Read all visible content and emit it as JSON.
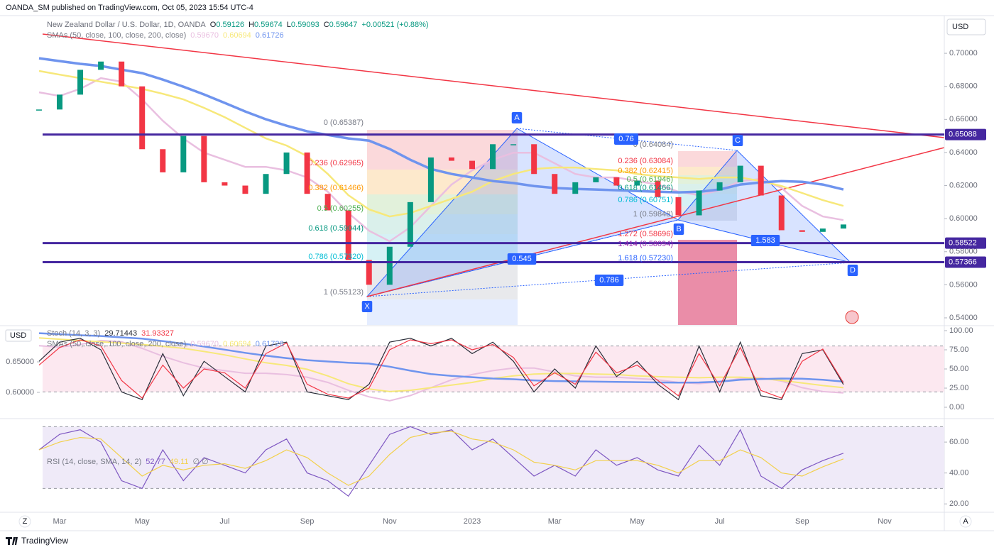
{
  "header": {
    "publisher": "OANDA_SM published on TradingView.com, Oct 05, 2023 15:54 UTC-4",
    "symbol": "New Zealand Dollar / U.S. Dollar, 1D, OANDA",
    "ohlc": [
      {
        "key": "O",
        "value": "0.59126"
      },
      {
        "key": "H",
        "value": "0.59674"
      },
      {
        "key": "L",
        "value": "0.59093"
      },
      {
        "key": "C",
        "value": "0.59647"
      }
    ],
    "change": "+0.00521 (+0.88%)",
    "currency": "USD",
    "brand": "TradingView",
    "scale_buttons": [
      "Z",
      "A"
    ]
  },
  "chart_data": [
    {
      "type": "candlestick",
      "indicator": "SMAs (50, close, 100, close, 200, close)",
      "indicator_values": [
        "0.59670",
        "0.60694",
        "0.61726"
      ],
      "categories": [
        null,
        "Mar",
        null,
        null,
        null,
        "May",
        null,
        null,
        null,
        "Jul",
        null,
        null,
        null,
        "Sep",
        null,
        null,
        null,
        "Nov",
        null,
        null,
        null,
        "2023",
        null,
        null,
        null,
        "Mar",
        null,
        null,
        null,
        "May",
        null,
        null,
        null,
        "Jul",
        null,
        null,
        null,
        "Sep",
        null,
        null,
        null,
        "Nov",
        null
      ],
      "values": [
        0.666,
        0.675,
        0.69,
        0.695,
        0.68,
        0.642,
        0.628,
        0.65,
        0.622,
        0.62,
        0.615,
        0.627,
        0.64,
        0.615,
        0.605,
        0.575,
        0.56,
        0.583,
        0.61,
        0.637,
        0.635,
        0.63,
        0.645,
        0.645,
        0.627,
        0.615,
        0.622,
        0.625,
        0.62,
        0.623,
        0.613,
        0.602,
        0.617,
        0.622,
        0.632,
        0.614,
        0.593,
        0.592,
        0.594,
        0.59647,
        null,
        null,
        null
      ],
      "up_color": "#089981",
      "down_color": "#f23645",
      "series": [
        {
          "color": "#e9bfe0",
          "values": [
            0.6764,
            0.6742,
            0.6785,
            0.685,
            0.6828,
            0.6721,
            0.6592,
            0.6485,
            0.6399,
            0.6356,
            0.6313,
            0.6313,
            0.6292,
            0.6249,
            0.6163,
            0.6034,
            0.5927,
            0.5863,
            0.5948,
            0.6077,
            0.6206,
            0.6292,
            0.6356,
            0.6399,
            0.6399,
            0.6335,
            0.627,
            0.6249,
            0.6249,
            0.6227,
            0.6206,
            0.6163,
            0.6142,
            0.6172,
            0.6227,
            0.624,
            0.6185,
            0.6077,
            0.6013,
            0.5991,
            null,
            null,
            null
          ]
        },
        {
          "color": "#f7e87a",
          "values": [
            0.6893,
            0.6871,
            0.685,
            0.6828,
            0.6807,
            0.6785,
            0.6755,
            0.6721,
            0.667,
            0.6614,
            0.6549,
            0.6485,
            0.6442,
            0.6378,
            0.627,
            0.6142,
            0.6056,
            0.6013,
            0.6034,
            0.6077,
            0.612,
            0.6163,
            0.6227,
            0.627,
            0.63,
            0.6309,
            0.6309,
            0.63,
            0.6292,
            0.627,
            0.6257,
            0.6249,
            0.624,
            0.6249,
            0.6249,
            0.6227,
            0.6197,
            0.6155,
            0.6112,
            0.6077,
            null,
            null,
            null
          ]
        },
        {
          "color": "#6f94ee",
          "values": [
            0.697,
            0.6953,
            0.6936,
            0.6923,
            0.6901,
            0.688,
            0.6841,
            0.6798,
            0.6751,
            0.67,
            0.6648,
            0.6601,
            0.6562,
            0.6528,
            0.6506,
            0.6485,
            0.6472,
            0.6421,
            0.6356,
            0.63,
            0.627,
            0.6249,
            0.6227,
            0.6215,
            0.6197,
            0.6185,
            0.618,
            0.6176,
            0.6172,
            0.6167,
            0.6163,
            0.6159,
            0.6163,
            0.6176,
            0.6206,
            0.6219,
            0.6227,
            0.6223,
            0.6206,
            0.6176,
            null,
            null,
            null
          ]
        }
      ],
      "ylim": [
        0.5357,
        0.7215
      ],
      "yticks": [
        {
          "value": 0.7,
          "label": "0.70000"
        },
        {
          "value": 0.68,
          "label": "0.68000"
        },
        {
          "value": 0.66,
          "label": "0.66000"
        },
        {
          "value": 0.64,
          "label": "0.64000"
        },
        {
          "value": 0.62,
          "label": "0.62000"
        },
        {
          "value": 0.6,
          "label": "0.60000"
        },
        {
          "value": 0.58,
          "label": "0.58000"
        },
        {
          "value": 0.56,
          "label": "0.56000"
        },
        {
          "value": 0.54,
          "label": "0.54000"
        }
      ],
      "levels": [
        {
          "value": 0.65088,
          "label": "0.65088"
        },
        {
          "value": 0.58522,
          "label": "0.58522"
        },
        {
          "value": 0.57366,
          "label": "0.57366"
        }
      ],
      "level_color": "#4527a0",
      "fib_labels": [
        {
          "text": "0 (0.65387)",
          "color": "#787b86"
        },
        {
          "text": "0.236 (0.62965)",
          "color": "#f23645"
        },
        {
          "text": "0.382 (0.61466)",
          "color": "#ff9800"
        },
        {
          "text": "0.5 (0.60255)",
          "color": "#4caf50"
        },
        {
          "text": "0.618 (0.59044)",
          "color": "#089981"
        },
        {
          "text": "0.786 (0.57320)",
          "color": "#00bcd4"
        },
        {
          "text": "1 (0.55123)",
          "color": "#787b86"
        },
        {
          "text": "0 (0.64084)",
          "color": "#787b86"
        },
        {
          "text": "0.236 (0.63084)",
          "color": "#f23645"
        },
        {
          "text": "0.382 (0.62415)",
          "color": "#ff9800"
        },
        {
          "text": "0.5 (0.61946)",
          "color": "#4caf50"
        },
        {
          "text": "0.618 (0.61466)",
          "color": "#089981"
        },
        {
          "text": "0.786 (0.60751)",
          "color": "#00bcd4"
        },
        {
          "text": "1 (0.59848)",
          "color": "#787b86"
        },
        {
          "text": "1.272 (0.58696)",
          "color": "#f23645"
        },
        {
          "text": "1.414 (0.58094)",
          "color": "#9c27b0"
        },
        {
          "text": "1.618 (0.57230)",
          "color": "#2962ff"
        }
      ],
      "pattern_labels": [
        "X",
        "A",
        "B",
        "C",
        "D",
        "0.76",
        "0.545",
        "1.583",
        "0.786"
      ],
      "pattern_color": "#2962ff"
    },
    {
      "type": "line",
      "title": "Stoch (14, 3, 3)",
      "legend_values": [
        "29.71443",
        "31.93327"
      ],
      "series": [
        {
          "color": "#2a2e39",
          "values": [
            60,
            85,
            90,
            75,
            20,
            10,
            70,
            15,
            60,
            40,
            20,
            80,
            85,
            20,
            15,
            10,
            30,
            85,
            90,
            80,
            90,
            70,
            85,
            60,
            20,
            50,
            25,
            80,
            40,
            60,
            30,
            10,
            80,
            20,
            85,
            15,
            10,
            70,
            75,
            29.71,
            null,
            null,
            null
          ]
        },
        {
          "color": "#f23645",
          "values": [
            55,
            78,
            88,
            80,
            35,
            12,
            55,
            25,
            50,
            45,
            25,
            70,
            84,
            30,
            17,
            12,
            25,
            75,
            88,
            83,
            88,
            75,
            82,
            65,
            28,
            45,
            30,
            72,
            45,
            55,
            35,
            15,
            70,
            28,
            78,
            22,
            12,
            60,
            76,
            31.93,
            null,
            null,
            null
          ]
        }
      ],
      "ylim": [
        -14.8,
        106.5
      ],
      "yticks": [
        {
          "value": 100,
          "label": "100.00"
        },
        {
          "value": 75,
          "label": "75.00"
        },
        {
          "value": 50,
          "label": "50.00"
        },
        {
          "value": 25,
          "label": "25.00"
        },
        {
          "value": 0,
          "label": "0.00"
        }
      ],
      "bands": [
        80,
        20
      ],
      "band_color": "#fce8f0",
      "y2lim": [
        0.557,
        0.7093
      ],
      "y2ticks": [
        {
          "value": 0.65,
          "label": "0.65000"
        },
        {
          "value": 0.6,
          "label": "0.60000"
        }
      ]
    },
    {
      "type": "line",
      "title": "RSI (14, close, SMA, 14, 2)",
      "legend_values": [
        "52.77",
        "49.11"
      ],
      "legend_extra": "∅ ∅",
      "series": [
        {
          "color": "#7e57c2",
          "values": [
            55,
            65,
            68,
            60,
            35,
            30,
            55,
            35,
            50,
            45,
            40,
            55,
            62,
            40,
            35,
            25,
            45,
            65,
            70,
            65,
            68,
            55,
            62,
            50,
            38,
            45,
            38,
            55,
            45,
            50,
            42,
            38,
            58,
            45,
            68,
            38,
            30,
            42,
            48,
            52.77,
            null,
            null,
            null
          ]
        },
        {
          "color": "#f2d04b",
          "values": [
            55,
            60,
            63,
            62,
            50,
            38,
            45,
            42,
            45,
            46,
            43,
            48,
            55,
            50,
            40,
            32,
            38,
            52,
            63,
            66,
            67,
            62,
            60,
            55,
            47,
            45,
            42,
            48,
            48,
            48,
            45,
            40,
            48,
            48,
            55,
            50,
            40,
            38,
            44,
            49.11,
            null,
            null,
            null
          ]
        }
      ],
      "ylim": [
        15.5,
        75.2
      ],
      "yticks": [
        {
          "value": 60,
          "label": "60.00"
        },
        {
          "value": 40,
          "label": "40.00"
        },
        {
          "value": 20,
          "label": "20.00"
        }
      ],
      "bands": [
        70,
        30
      ],
      "band_color": "#efeaf8"
    }
  ]
}
